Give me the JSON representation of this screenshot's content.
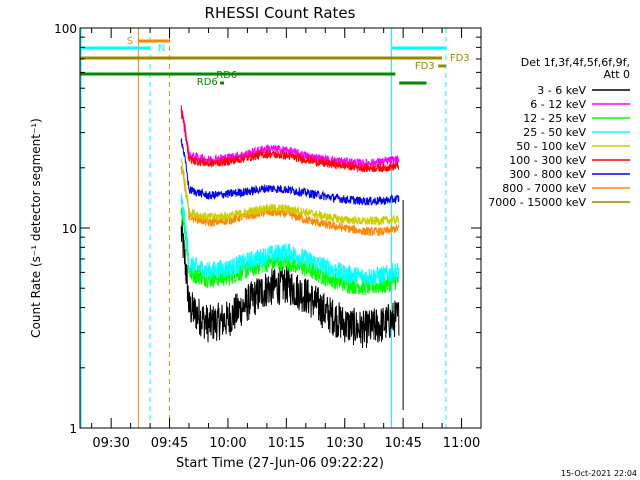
{
  "chart_data": {
    "type": "line",
    "title": "RHESSI Count Rates",
    "xlabel": "Start Time (27-Jun-06 09:22:22)",
    "ylabel": "Count Rate (s⁻¹ detector segment⁻¹)",
    "y_scale": "log",
    "xlim": [
      "09:22",
      "11:05"
    ],
    "ylim": [
      1,
      100
    ],
    "x_ticks": [
      "09:30",
      "09:45",
      "10:00",
      "10:15",
      "10:30",
      "10:45",
      "11:00"
    ],
    "y_ticks": [
      "1",
      "10",
      "100"
    ],
    "legend_header": [
      "Det 1f,3f,4f,5f,6f,9f,",
      "Att 0"
    ],
    "legend_position": "right",
    "data_start": "09:48",
    "data_end": "10:44",
    "series": [
      {
        "name": "3 - 6 keV",
        "color": "#000000",
        "x": [
          "09:48",
          "09:50",
          "09:55",
          "10:00",
          "10:05",
          "10:10",
          "10:15",
          "10:20",
          "10:25",
          "10:30",
          "10:35",
          "10:40",
          "10:44"
        ],
        "y": [
          9.5,
          4.0,
          3.3,
          3.5,
          4.2,
          5.0,
          5.2,
          4.6,
          3.8,
          3.3,
          3.1,
          3.3,
          3.6
        ]
      },
      {
        "name": "6 - 12 keV",
        "color": "#ff00ff",
        "x": [
          "09:48",
          "09:50",
          "09:55",
          "10:00",
          "10:05",
          "10:10",
          "10:15",
          "10:20",
          "10:25",
          "10:30",
          "10:35",
          "10:40",
          "10:44"
        ],
        "y": [
          40,
          23,
          22,
          22.5,
          23.5,
          25,
          24.5,
          23,
          22,
          21.5,
          21,
          21.5,
          22
        ]
      },
      {
        "name": "12 - 25 keV",
        "color": "#00ff00",
        "x": [
          "09:48",
          "09:50",
          "09:55",
          "10:00",
          "10:05",
          "10:10",
          "10:15",
          "10:20",
          "10:25",
          "10:30",
          "10:35",
          "10:40",
          "10:44"
        ],
        "y": [
          13,
          6.0,
          5.6,
          5.7,
          6.2,
          6.7,
          6.8,
          6.3,
          5.7,
          5.3,
          5.1,
          5.2,
          5.5
        ]
      },
      {
        "name": "25 - 50 keV",
        "color": "#00ffff",
        "x": [
          "09:48",
          "09:50",
          "09:55",
          "10:00",
          "10:05",
          "10:10",
          "10:15",
          "10:20",
          "10:25",
          "10:30",
          "10:35",
          "10:40",
          "10:44"
        ],
        "y": [
          14,
          6.6,
          6.1,
          6.3,
          6.8,
          7.3,
          7.6,
          7.0,
          6.4,
          5.9,
          5.7,
          5.8,
          6.1
        ]
      },
      {
        "name": "50 - 100 keV",
        "color": "#cccc00",
        "x": [
          "09:48",
          "09:50",
          "09:55",
          "10:00",
          "10:05",
          "10:10",
          "10:15",
          "10:20",
          "10:25",
          "10:30",
          "10:35",
          "10:40",
          "10:44"
        ],
        "y": [
          22,
          12,
          11.3,
          11.5,
          12,
          12.6,
          12.5,
          12,
          11.4,
          11,
          10.8,
          10.9,
          11
        ]
      },
      {
        "name": "100 - 300 keV",
        "color": "#ff0000",
        "x": [
          "09:48",
          "09:50",
          "09:55",
          "10:00",
          "10:05",
          "10:10",
          "10:15",
          "10:20",
          "10:25",
          "10:30",
          "10:35",
          "10:40",
          "10:44"
        ],
        "y": [
          38,
          22,
          21,
          21.5,
          22.5,
          23.5,
          23,
          22,
          21,
          20.5,
          20,
          20,
          20.5
        ]
      },
      {
        "name": "300 - 800 keV",
        "color": "#0000ff",
        "x": [
          "09:48",
          "09:50",
          "09:55",
          "10:00",
          "10:05",
          "10:10",
          "10:15",
          "10:20",
          "10:25",
          "10:30",
          "10:35",
          "10:40",
          "10:44"
        ],
        "y": [
          28,
          15.5,
          14.5,
          14.8,
          15.2,
          15.8,
          15.6,
          15.0,
          14.4,
          13.9,
          13.6,
          13.7,
          14
        ]
      },
      {
        "name": "800 - 7000 keV",
        "color": "#ff8800",
        "x": [
          "09:48",
          "09:50",
          "09:55",
          "10:00",
          "10:05",
          "10:10",
          "10:15",
          "10:20",
          "10:25",
          "10:30",
          "10:35",
          "10:40",
          "10:44"
        ],
        "y": [
          20,
          11.5,
          10.6,
          10.9,
          11.5,
          12,
          11.8,
          11,
          10.4,
          10,
          9.6,
          9.6,
          10
        ]
      },
      {
        "name": "7000 - 15000 keV",
        "color": "#998800",
        "x": [],
        "y": []
      }
    ],
    "annotations": [
      {
        "text": "S",
        "color": "#ff8800"
      },
      {
        "text": "N",
        "color": "#00ffff"
      },
      {
        "text": "RD6",
        "color": "#008800"
      },
      {
        "text": "RD6",
        "color": "#008800"
      },
      {
        "text": "FD3",
        "color": "#998800"
      },
      {
        "text": "FD3",
        "color": "#998800"
      }
    ],
    "timestamp": "15-Oct-2021 22:04"
  }
}
